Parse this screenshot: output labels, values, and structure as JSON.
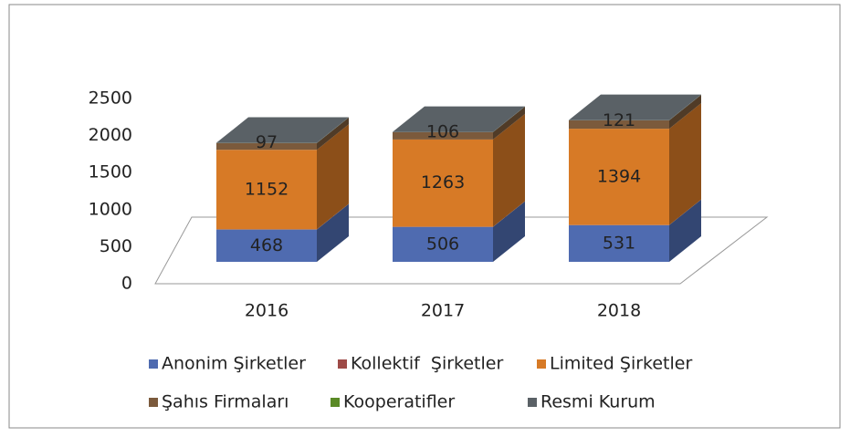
{
  "chart_data": {
    "type": "bar3d_stacked",
    "categories": [
      "2016",
      "2017",
      "2018"
    ],
    "series": [
      {
        "name": "Anonim Şirketler",
        "color": "#4f6bb0",
        "values": [
          468,
          506,
          531
        ]
      },
      {
        "name": "Kollektif  Şirketler",
        "color": "#9e4a47",
        "values": [
          2,
          2,
          2
        ]
      },
      {
        "name": "Limited Şirketler",
        "color": "#d77a26",
        "values": [
          1152,
          1263,
          1394
        ]
      },
      {
        "name": "Şahıs Firmaları",
        "color": "#7b5a3c",
        "values": [
          97,
          106,
          121
        ]
      },
      {
        "name": "Kooperatifler",
        "color": "#5a8a26",
        "values": [
          1,
          1,
          1
        ]
      },
      {
        "name": "Resmi Kurum",
        "color": "#5a6166",
        "values": [
          3,
          3,
          3
        ]
      }
    ],
    "labeled_series": [
      0,
      2,
      3
    ],
    "ylim": [
      0,
      2500
    ],
    "yticks": [
      0,
      500,
      1000,
      1500,
      2000,
      2500
    ],
    "legend": "bottom"
  }
}
